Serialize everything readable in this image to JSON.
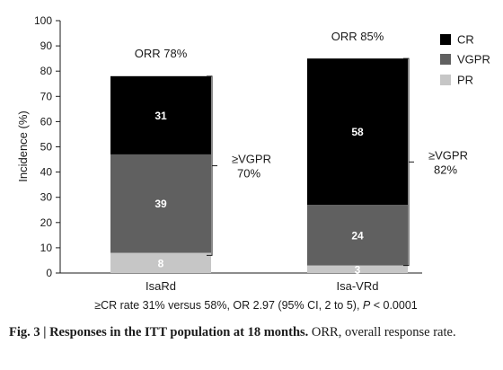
{
  "chart_data": {
    "type": "bar",
    "stacked": true,
    "categories": [
      "IsaRd",
      "Isa-VRd"
    ],
    "series": [
      {
        "name": "PR",
        "values": [
          8,
          3
        ],
        "color": "#c6c6c6",
        "label_color": "#ffffff"
      },
      {
        "name": "VGPR",
        "values": [
          39,
          24
        ],
        "color": "#606060",
        "label_color": "#ffffff"
      },
      {
        "name": "CR",
        "values": [
          31,
          58
        ],
        "color": "#000000",
        "label_color": "#ffffff"
      }
    ],
    "legend_order": [
      "CR",
      "VGPR",
      "PR"
    ],
    "legend_position": "right",
    "ylabel": "Incidence (%)",
    "xlabel": "",
    "ylim": [
      0,
      100
    ],
    "yticks": [
      0,
      10,
      20,
      30,
      40,
      50,
      60,
      70,
      80,
      90,
      100
    ],
    "grid": false,
    "annotations": {
      "orr": [
        "ORR 78%",
        "ORR 85%"
      ],
      "vgpr_bracket": [
        [
          "≥VGPR",
          "70%"
        ],
        [
          "≥VGPR",
          "82%"
        ]
      ],
      "vgpr_bracket_range": [
        [
          0,
          78
        ],
        [
          0,
          85
        ]
      ]
    },
    "footnote": {
      "pre": "≥CR rate 31% versus 58%, OR 2.97 (95% CI, 2 to 5), ",
      "p_italic": "P",
      "post": " < 0.0001"
    }
  },
  "caption": {
    "fig_label": "Fig. 3 | Responses in the ITT population at 18 months.",
    "text": " ORR, overall response rate."
  }
}
